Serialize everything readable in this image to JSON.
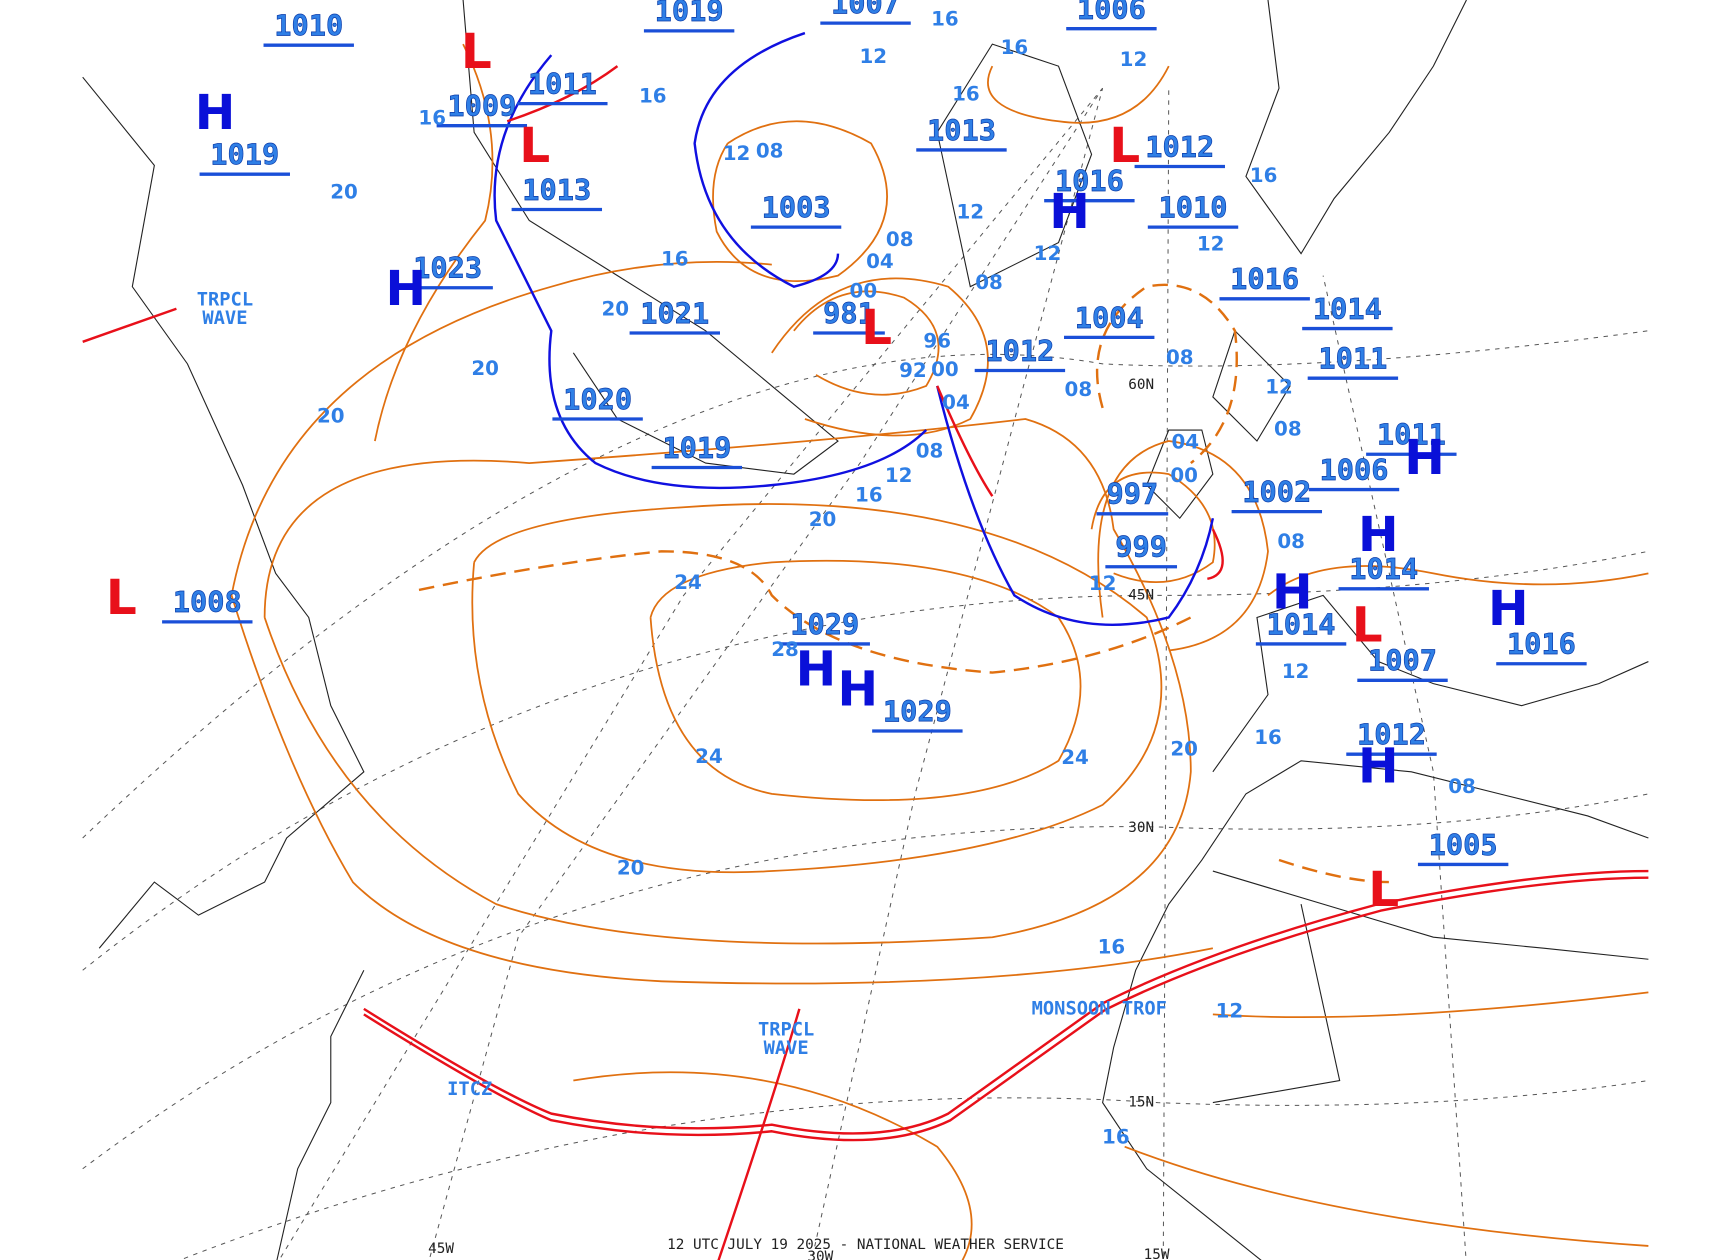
{
  "footer": "12 UTC JULY 19 2025 - NATIONAL WEATHER SERVICE",
  "pressure_labels": [
    "1010",
    "1019",
    "1007",
    "1006",
    "1011",
    "1009",
    "1019",
    "1013",
    "1013",
    "1012",
    "1016",
    "1010",
    "1003",
    "1023",
    "1021",
    "981",
    "1004",
    "1012",
    "1016",
    "1014",
    "1011",
    "1020",
    "1019",
    "1011",
    "1006",
    "997",
    "1002",
    "999",
    "1014",
    "1008",
    "1029",
    "1029",
    "1014",
    "1007",
    "1016",
    "1012",
    "1005"
  ],
  "centers": [
    "H",
    "H",
    "L",
    "L",
    "L",
    "L",
    "H",
    "L",
    "H",
    "H",
    "H",
    "H",
    "L",
    "H",
    "H",
    "L",
    "H"
  ],
  "isobar_labels": [
    "20",
    "20",
    "20",
    "20",
    "16",
    "16",
    "16",
    "16",
    "16",
    "16",
    "16",
    "16",
    "16",
    "16",
    "16",
    "12",
    "12",
    "12",
    "12",
    "12",
    "12",
    "12",
    "12",
    "12",
    "12",
    "12",
    "08",
    "08",
    "08",
    "08",
    "08",
    "08",
    "08",
    "08",
    "08",
    "04",
    "04",
    "04",
    "00",
    "00",
    "00",
    "96",
    "92",
    "20",
    "24",
    "24",
    "24",
    "20",
    "20",
    "28"
  ],
  "features": [
    {
      "lines": [
        "TRPCL",
        "WAVE"
      ]
    },
    {
      "lines": [
        "TRPCL",
        "WAVE"
      ]
    },
    {
      "lines": [
        "ITCZ"
      ]
    },
    {
      "lines": [
        "MONSOON TROF"
      ]
    }
  ],
  "grid_labels": [
    "60N",
    "45N",
    "30N",
    "15N",
    "45W",
    "30W",
    "15W"
  ]
}
